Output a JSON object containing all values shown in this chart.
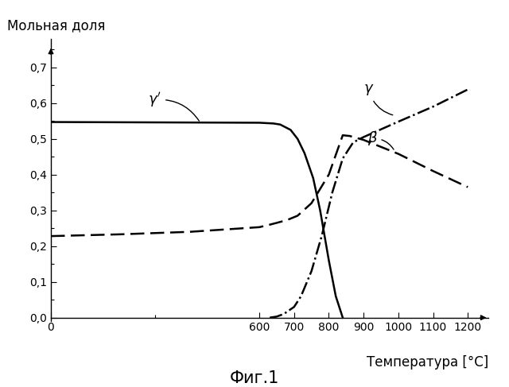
{
  "ylabel": "Мольная доля",
  "xlabel": "Температура [°C]",
  "caption": "Фиг.1",
  "xlim": [
    0,
    1260
  ],
  "ylim": [
    -0.01,
    0.78
  ],
  "xticks": [
    0,
    600,
    700,
    800,
    900,
    1000,
    1100,
    1200
  ],
  "yticks": [
    0,
    0.1,
    0.2,
    0.3,
    0.4,
    0.5,
    0.6,
    0.7
  ],
  "gamma_prime_x": [
    0,
    600,
    640,
    660,
    690,
    710,
    730,
    755,
    775,
    800,
    820,
    840
  ],
  "gamma_prime_y": [
    0.547,
    0.545,
    0.543,
    0.54,
    0.525,
    0.5,
    0.46,
    0.39,
    0.3,
    0.16,
    0.06,
    0.0
  ],
  "beta_x": [
    0,
    200,
    400,
    600,
    630,
    650,
    680,
    710,
    750,
    800,
    840,
    860,
    900,
    1000,
    1100,
    1200
  ],
  "beta_y": [
    0.228,
    0.233,
    0.24,
    0.253,
    0.26,
    0.265,
    0.273,
    0.285,
    0.32,
    0.4,
    0.51,
    0.508,
    0.497,
    0.458,
    0.41,
    0.365
  ],
  "gamma_x": [
    630,
    650,
    670,
    700,
    720,
    750,
    780,
    810,
    840,
    870,
    900,
    1000,
    1100,
    1200
  ],
  "gamma_y": [
    0.0,
    0.003,
    0.01,
    0.03,
    0.06,
    0.13,
    0.23,
    0.35,
    0.445,
    0.49,
    0.505,
    0.548,
    0.59,
    0.638
  ],
  "line_color": "#000000",
  "background_color": "#ffffff",
  "lw": 1.8,
  "annotation_fontsize": 13,
  "label_fontsize": 12,
  "caption_fontsize": 15
}
